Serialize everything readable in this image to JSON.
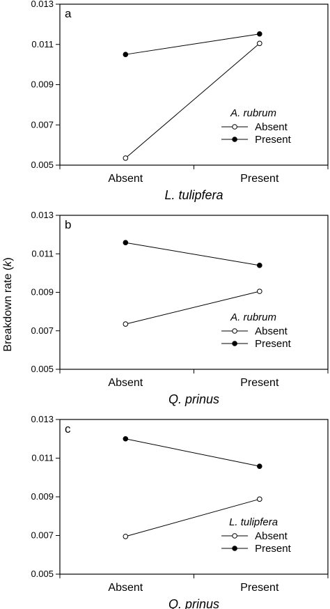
{
  "ylabel_prefix": "Breakdown rate (",
  "ylabel_var": "k",
  "ylabel_suffix": ")",
  "chart_data": [
    {
      "type": "line",
      "panel": "a",
      "title": "",
      "xlabel": "L. tulipfera",
      "ylabel": "Breakdown rate (k)",
      "categories": [
        "Absent",
        "Present"
      ],
      "ylim": [
        0.005,
        0.013
      ],
      "yticks": [
        "0.005",
        "0.007",
        "0.009",
        "0.011",
        "0.013"
      ],
      "legend_title": "A. rubrum",
      "series": [
        {
          "name": "Absent",
          "marker": "open",
          "values": [
            0.00535,
            0.01105
          ]
        },
        {
          "name": "Present",
          "marker": "filled",
          "values": [
            0.0105,
            0.01152
          ]
        }
      ]
    },
    {
      "type": "line",
      "panel": "b",
      "title": "",
      "xlabel": "Q. prinus",
      "ylabel": "Breakdown rate (k)",
      "categories": [
        "Absent",
        "Present"
      ],
      "ylim": [
        0.005,
        0.013
      ],
      "yticks": [
        "0.005",
        "0.007",
        "0.009",
        "0.011",
        "0.013"
      ],
      "legend_title": "A. rubrum",
      "series": [
        {
          "name": "Absent",
          "marker": "open",
          "values": [
            0.00735,
            0.00905
          ]
        },
        {
          "name": "Present",
          "marker": "filled",
          "values": [
            0.01158,
            0.0104
          ]
        }
      ]
    },
    {
      "type": "line",
      "panel": "c",
      "title": "",
      "xlabel": "Q. prinus",
      "ylabel": "Breakdown rate (k)",
      "categories": [
        "Absent",
        "Present"
      ],
      "ylim": [
        0.005,
        0.013
      ],
      "yticks": [
        "0.005",
        "0.007",
        "0.009",
        "0.011",
        "0.013"
      ],
      "legend_title": "L. tulipfera",
      "series": [
        {
          "name": "Absent",
          "marker": "open",
          "values": [
            0.00695,
            0.00888
          ]
        },
        {
          "name": "Present",
          "marker": "filled",
          "values": [
            0.012,
            0.01058
          ]
        }
      ]
    }
  ]
}
